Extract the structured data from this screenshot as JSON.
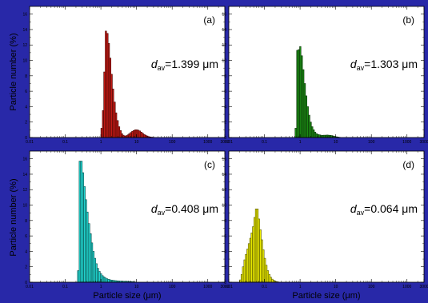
{
  "figure": {
    "ylabel": "Particle number (%)",
    "xlabel": "Particle size (μm)",
    "background": "#2828a8",
    "panel_background": "#ffffff"
  },
  "chart_data": [
    {
      "type": "bar",
      "panel_label": "(a)",
      "annotation": {
        "symbol": "d",
        "subscript": "av",
        "value": "=1.399 μm"
      },
      "color": "#c41a14",
      "xscale": "log",
      "xlim": [
        0.01,
        3000
      ],
      "ylim": [
        0,
        17
      ],
      "xticks": [
        "0.01",
        "0.1",
        "1",
        "10",
        "100",
        "1000",
        "3000"
      ],
      "yticks": [
        "0",
        "2",
        "4",
        "6",
        "8",
        "10",
        "12",
        "14",
        "16"
      ],
      "bins": [
        [
          1.0,
          1.1,
          1.2
        ],
        [
          1.1,
          1.2,
          3.5
        ],
        [
          1.2,
          1.32,
          8.5
        ],
        [
          1.32,
          1.45,
          13.8
        ],
        [
          1.45,
          1.6,
          13.5
        ],
        [
          1.6,
          1.75,
          12.2
        ],
        [
          1.75,
          1.92,
          10.3
        ],
        [
          1.92,
          2.1,
          8.2
        ],
        [
          2.1,
          2.3,
          6.3
        ],
        [
          2.3,
          2.55,
          4.6
        ],
        [
          2.55,
          2.8,
          3.2
        ],
        [
          2.8,
          3.1,
          2.2
        ],
        [
          3.1,
          3.4,
          1.4
        ],
        [
          3.4,
          3.75,
          0.9
        ],
        [
          3.75,
          4.1,
          0.5
        ],
        [
          4.1,
          4.5,
          0.3
        ],
        [
          4.5,
          5.0,
          0.2
        ],
        [
          5.0,
          5.5,
          0.25
        ],
        [
          5.5,
          6.0,
          0.35
        ],
        [
          6.0,
          6.6,
          0.5
        ],
        [
          6.6,
          7.3,
          0.65
        ],
        [
          7.3,
          8.0,
          0.8
        ],
        [
          8.0,
          8.8,
          0.9
        ],
        [
          8.8,
          9.7,
          1.0
        ],
        [
          9.7,
          10.7,
          1.0
        ],
        [
          10.7,
          11.8,
          0.95
        ],
        [
          11.8,
          13.0,
          0.85
        ],
        [
          13.0,
          14.3,
          0.7
        ],
        [
          14.3,
          15.7,
          0.55
        ],
        [
          15.7,
          17.3,
          0.4
        ],
        [
          17.3,
          19.0,
          0.3
        ],
        [
          19.0,
          21.0,
          0.2
        ],
        [
          21.0,
          23.0,
          0.12
        ],
        [
          23.0,
          25.5,
          0.08
        ],
        [
          25.5,
          28.0,
          0.05
        ],
        [
          28.0,
          31.0,
          0.03
        ]
      ]
    },
    {
      "type": "bar",
      "panel_label": "(b)",
      "annotation": {
        "symbol": "d",
        "subscript": "av",
        "value": "=1.303 μm"
      },
      "color": "#1c8c14",
      "xscale": "log",
      "xlim": [
        0.01,
        3000
      ],
      "ylim": [
        0,
        17
      ],
      "xticks": [
        "0.01",
        "0.1",
        "1",
        "10",
        "100",
        "1000",
        "3000"
      ],
      "yticks": [
        "0",
        "2",
        "4",
        "6",
        "8",
        "10",
        "12",
        "14",
        "16"
      ],
      "bins": [
        [
          0.72,
          0.8,
          1.2
        ],
        [
          0.8,
          0.88,
          11.3
        ],
        [
          0.88,
          0.97,
          11.4
        ],
        [
          0.97,
          1.06,
          11.8
        ],
        [
          1.06,
          1.17,
          10.6
        ],
        [
          1.17,
          1.29,
          8.8
        ],
        [
          1.29,
          1.42,
          7.0
        ],
        [
          1.42,
          1.56,
          5.4
        ],
        [
          1.56,
          1.72,
          4.0
        ],
        [
          1.72,
          1.89,
          2.9
        ],
        [
          1.89,
          2.08,
          2.0
        ],
        [
          2.08,
          2.29,
          1.4
        ],
        [
          2.29,
          2.52,
          1.0
        ],
        [
          2.52,
          2.77,
          0.7
        ],
        [
          2.77,
          3.05,
          0.5
        ],
        [
          3.05,
          3.35,
          0.4
        ],
        [
          3.35,
          3.7,
          0.35
        ],
        [
          3.7,
          4.1,
          0.3
        ],
        [
          4.1,
          4.5,
          0.28
        ],
        [
          4.5,
          5.0,
          0.3
        ],
        [
          5.0,
          5.5,
          0.3
        ],
        [
          5.5,
          6.1,
          0.32
        ],
        [
          6.1,
          6.7,
          0.3
        ],
        [
          6.7,
          7.4,
          0.28
        ],
        [
          7.4,
          8.2,
          0.25
        ],
        [
          8.2,
          9.0,
          0.2
        ],
        [
          9.0,
          10.0,
          0.15
        ],
        [
          10.0,
          11.0,
          0.1
        ],
        [
          11.0,
          12.1,
          0.06
        ],
        [
          12.1,
          13.3,
          0.03
        ]
      ]
    },
    {
      "type": "bar",
      "panel_label": "(c)",
      "annotation": {
        "symbol": "d",
        "subscript": "av",
        "value": "=0.408 μm"
      },
      "color": "#22d6d0",
      "xscale": "log",
      "xlim": [
        0.01,
        3000
      ],
      "ylim": [
        0,
        17
      ],
      "xticks": [
        "0.01",
        "0.1",
        "1",
        "10",
        "100",
        "1000",
        "3000"
      ],
      "yticks": [
        "0",
        "2",
        "4",
        "6",
        "8",
        "10",
        "12",
        "14",
        "16"
      ],
      "bins": [
        [
          0.22,
          0.245,
          1.5
        ],
        [
          0.245,
          0.27,
          15.7
        ],
        [
          0.27,
          0.3,
          15.7
        ],
        [
          0.3,
          0.33,
          14.2
        ],
        [
          0.33,
          0.365,
          12.4
        ],
        [
          0.365,
          0.4,
          10.7
        ],
        [
          0.4,
          0.44,
          9.1
        ],
        [
          0.44,
          0.49,
          7.6
        ],
        [
          0.49,
          0.54,
          6.3
        ],
        [
          0.54,
          0.59,
          5.1
        ],
        [
          0.59,
          0.65,
          4.0
        ],
        [
          0.65,
          0.72,
          3.1
        ],
        [
          0.72,
          0.79,
          2.4
        ],
        [
          0.79,
          0.87,
          1.8
        ],
        [
          0.87,
          0.96,
          1.4
        ],
        [
          0.96,
          1.06,
          1.1
        ],
        [
          1.06,
          1.17,
          0.85
        ],
        [
          1.17,
          1.29,
          0.7
        ],
        [
          1.29,
          1.42,
          0.55
        ],
        [
          1.42,
          1.56,
          0.45
        ],
        [
          1.56,
          1.72,
          0.38
        ],
        [
          1.72,
          1.89,
          0.32
        ],
        [
          1.89,
          2.08,
          0.28
        ],
        [
          2.08,
          2.29,
          0.25
        ],
        [
          2.29,
          2.52,
          0.22
        ],
        [
          2.52,
          2.77,
          0.2
        ],
        [
          2.77,
          3.05,
          0.18
        ],
        [
          3.05,
          3.35,
          0.16
        ],
        [
          3.35,
          3.7,
          0.15
        ],
        [
          3.7,
          4.1,
          0.14
        ],
        [
          4.1,
          4.5,
          0.13
        ],
        [
          4.5,
          5.0,
          0.12
        ],
        [
          5.0,
          5.5,
          0.12
        ],
        [
          5.5,
          6.1,
          0.11
        ],
        [
          6.1,
          6.7,
          0.1
        ],
        [
          6.7,
          7.4,
          0.08
        ],
        [
          7.4,
          8.2,
          0.06
        ],
        [
          8.2,
          9.0,
          0.04
        ],
        [
          9.0,
          10.0,
          0.02
        ]
      ]
    },
    {
      "type": "bar",
      "panel_label": "(d)",
      "annotation": {
        "symbol": "d",
        "subscript": "av",
        "value": "=0.064 μm"
      },
      "color": "#f0f000",
      "xscale": "log",
      "xlim": [
        0.01,
        3000
      ],
      "ylim": [
        0,
        17
      ],
      "xticks": [
        "0.01",
        "0.1",
        "1",
        "10",
        "100",
        "1000",
        "3000"
      ],
      "yticks": [
        "0",
        "2",
        "4",
        "6",
        "8",
        "10",
        "12",
        "14",
        "16"
      ],
      "bins": [
        [
          0.02,
          0.022,
          0.3
        ],
        [
          0.022,
          0.024,
          1.0
        ],
        [
          0.024,
          0.0265,
          2.0
        ],
        [
          0.0265,
          0.029,
          2.9
        ],
        [
          0.029,
          0.032,
          3.6
        ],
        [
          0.032,
          0.035,
          4.3
        ],
        [
          0.035,
          0.0385,
          5.0
        ],
        [
          0.0385,
          0.042,
          5.7
        ],
        [
          0.042,
          0.046,
          6.4
        ],
        [
          0.046,
          0.0505,
          7.2
        ],
        [
          0.0505,
          0.0555,
          8.4
        ],
        [
          0.0555,
          0.061,
          9.5
        ],
        [
          0.061,
          0.067,
          9.5
        ],
        [
          0.067,
          0.0735,
          8.2
        ],
        [
          0.0735,
          0.081,
          6.8
        ],
        [
          0.081,
          0.089,
          5.5
        ],
        [
          0.089,
          0.098,
          4.2
        ],
        [
          0.098,
          0.108,
          3.1
        ],
        [
          0.108,
          0.119,
          2.2
        ],
        [
          0.119,
          0.131,
          1.5
        ],
        [
          0.131,
          0.144,
          1.0
        ],
        [
          0.144,
          0.158,
          0.65
        ],
        [
          0.158,
          0.174,
          0.4
        ],
        [
          0.174,
          0.191,
          0.25
        ],
        [
          0.191,
          0.21,
          0.15
        ],
        [
          0.21,
          0.231,
          0.08
        ],
        [
          0.231,
          0.254,
          0.04
        ]
      ]
    }
  ]
}
